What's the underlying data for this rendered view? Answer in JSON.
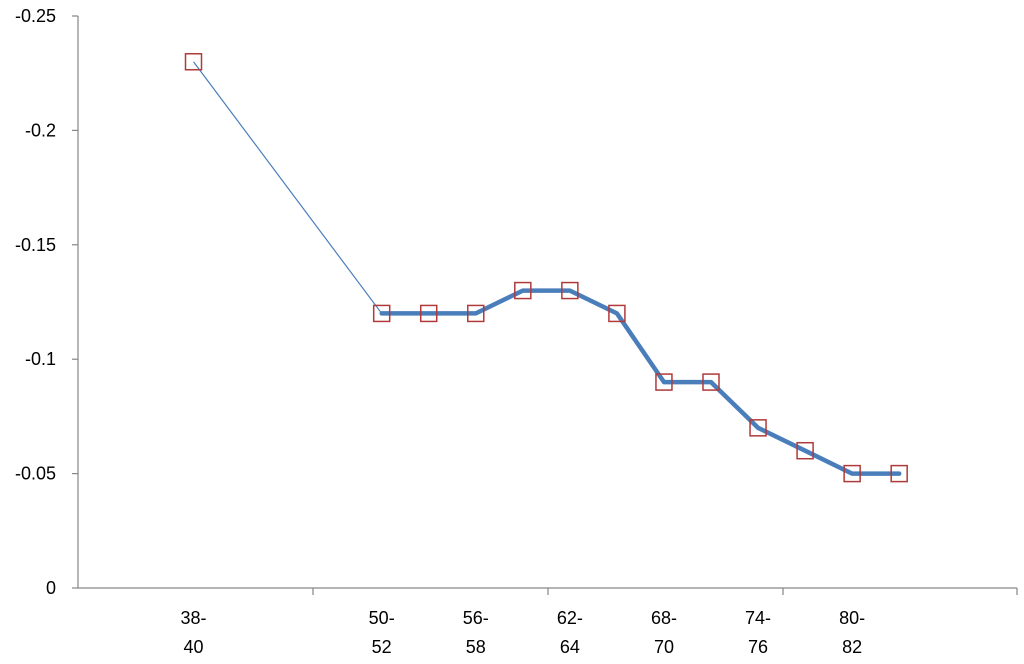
{
  "chart_data": {
    "type": "line",
    "title": "",
    "xlabel": "",
    "ylabel": "",
    "y_axis_reversed": true,
    "ylim": [
      0,
      -0.25
    ],
    "yticks": [
      "-0.25",
      "-0.2",
      "-0.15",
      "-0.1",
      "-0.05",
      "0"
    ],
    "xtick_labels": [
      {
        "line1": "38-",
        "line2": "40"
      },
      {
        "line1": "50-",
        "line2": "52"
      },
      {
        "line1": "56-",
        "line2": "58"
      },
      {
        "line1": "62-",
        "line2": "64"
      },
      {
        "line1": "68-",
        "line2": "70"
      },
      {
        "line1": "74-",
        "line2": "76"
      },
      {
        "line1": "80-",
        "line2": "82"
      }
    ],
    "series": [
      {
        "x": [
          38,
          50,
          53,
          56,
          59,
          62,
          65,
          68,
          71,
          74,
          77,
          80,
          83
        ],
        "values": [
          -0.23,
          -0.12,
          -0.12,
          -0.12,
          -0.13,
          -0.13,
          -0.12,
          -0.09,
          -0.09,
          -0.07,
          -0.06,
          -0.05,
          -0.05
        ],
        "line_color": "#4a7ebb",
        "marker": "square",
        "marker_color": "#b03a3a"
      }
    ],
    "grid": false,
    "legend": "none"
  }
}
